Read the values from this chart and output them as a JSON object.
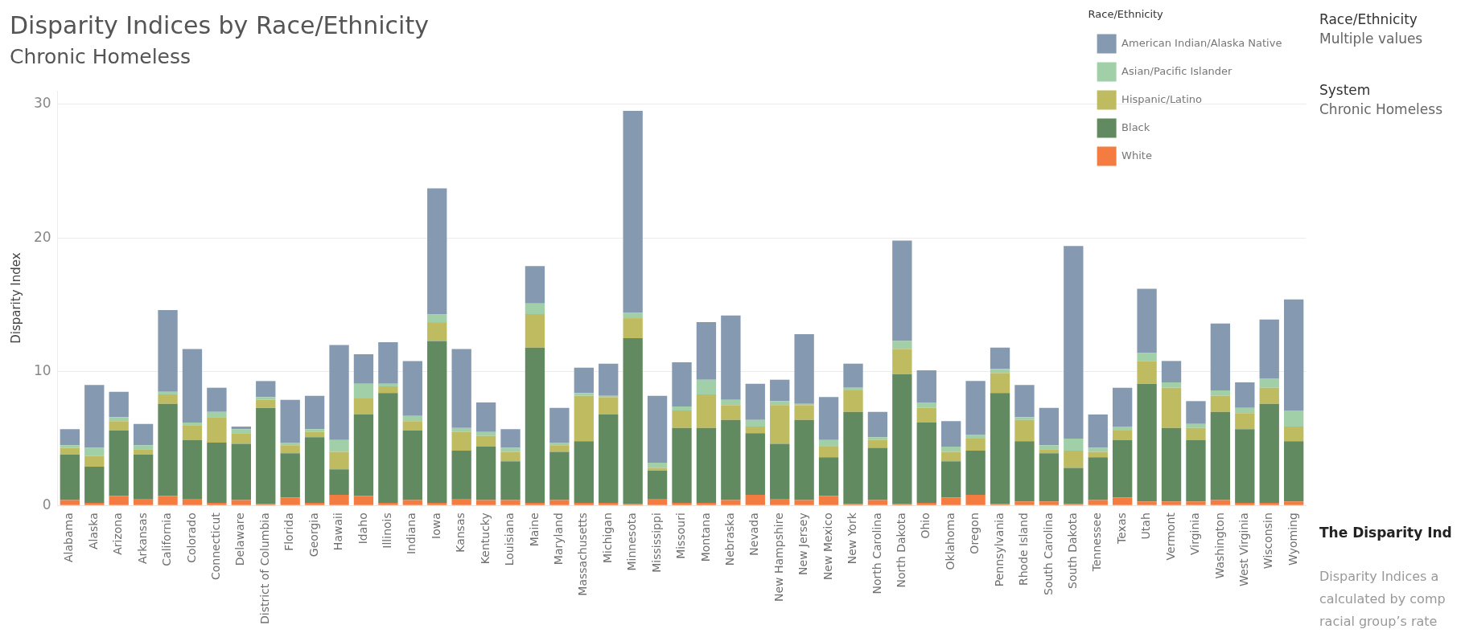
{
  "chart_data": {
    "type": "bar",
    "title": "Disparity Indices by Race/Ethnicity",
    "subtitle": "Chronic Homeless",
    "ylabel": "Disparity Index",
    "legend_title": "Race/Ethnicity",
    "categories": [
      "Alabama",
      "Alaska",
      "Arizona",
      "Arkansas",
      "California",
      "Colorado",
      "Connecticut",
      "Delaware",
      "District of Columbia",
      "Florida",
      "Georgia",
      "Hawaii",
      "Idaho",
      "Illinois",
      "Indiana",
      "Iowa",
      "Kansas",
      "Kentucky",
      "Louisiana",
      "Maine",
      "Maryland",
      "Massachusetts",
      "Michigan",
      "Minnesota",
      "Mississippi",
      "Missouri",
      "Montana",
      "Nebraska",
      "Nevada",
      "New Hampshire",
      "New Jersey",
      "New Mexico",
      "New York",
      "North Carolina",
      "North Dakota",
      "Ohio",
      "Oklahoma",
      "Oregon",
      "Pennsylvania",
      "Rhode Island",
      "South Carolina",
      "South Dakota",
      "Tennessee",
      "Texas",
      "Utah",
      "Vermont",
      "Virginia",
      "Washington",
      "West Virginia",
      "Wisconsin",
      "Wyoming"
    ],
    "stacked": true,
    "ylim": [
      0,
      31
    ],
    "yticks": [
      0,
      10,
      20,
      30
    ],
    "grid": "y",
    "legend": "top right",
    "series": [
      {
        "name": "White",
        "color": "#f47c41",
        "values": [
          0.4,
          0.2,
          0.7,
          0.5,
          0.7,
          0.5,
          0.2,
          0.4,
          0.1,
          0.6,
          0.2,
          0.8,
          0.7,
          0.2,
          0.4,
          0.2,
          0.5,
          0.4,
          0.4,
          0.2,
          0.4,
          0.2,
          0.2,
          0.1,
          0.5,
          0.2,
          0.2,
          0.4,
          0.8,
          0.5,
          0.4,
          0.7,
          0.1,
          0.4,
          0.1,
          0.2,
          0.6,
          0.8,
          0.1,
          0.3,
          0.3,
          0.1,
          0.4,
          0.6,
          0.3,
          0.3,
          0.3,
          0.4,
          0.2,
          0.2,
          0.3
        ]
      },
      {
        "name": "Black",
        "color": "#618a60",
        "values": [
          3.4,
          2.7,
          4.9,
          3.3,
          6.9,
          4.4,
          4.5,
          4.2,
          7.2,
          3.3,
          4.9,
          1.9,
          6.1,
          8.2,
          5.2,
          12.1,
          3.6,
          4.0,
          2.9,
          11.6,
          3.6,
          4.6,
          6.6,
          12.4,
          2.1,
          5.6,
          5.6,
          6.0,
          4.6,
          4.1,
          6.0,
          2.9,
          6.9,
          3.9,
          9.7,
          6.0,
          2.7,
          3.3,
          8.3,
          4.5,
          3.6,
          2.7,
          3.2,
          4.3,
          8.8,
          5.5,
          4.6,
          6.6,
          5.5,
          7.4,
          4.5
        ]
      },
      {
        "name": "Hispanic/Latino",
        "color": "#bfbb60",
        "values": [
          0.5,
          0.8,
          0.7,
          0.4,
          0.7,
          1.1,
          1.9,
          0.8,
          0.6,
          0.6,
          0.4,
          1.3,
          1.2,
          0.5,
          0.7,
          1.4,
          1.4,
          0.8,
          0.7,
          2.5,
          0.5,
          3.4,
          1.3,
          1.5,
          0.2,
          1.3,
          2.5,
          1.1,
          0.5,
          2.9,
          1.1,
          0.8,
          1.6,
          0.6,
          1.9,
          1.1,
          0.7,
          0.9,
          1.5,
          1.6,
          0.3,
          1.3,
          0.4,
          0.7,
          1.7,
          3.0,
          0.9,
          1.2,
          1.2,
          1.2,
          1.1
        ]
      },
      {
        "name": "Asian/Pacific Islander",
        "color": "#a0cfa8",
        "values": [
          0.2,
          0.6,
          0.3,
          0.3,
          0.2,
          0.2,
          0.4,
          0.3,
          0.2,
          0.2,
          0.2,
          0.9,
          1.1,
          0.2,
          0.4,
          0.6,
          0.3,
          0.3,
          0.3,
          0.8,
          0.2,
          0.2,
          0.1,
          0.4,
          0.4,
          0.3,
          1.1,
          0.4,
          0.5,
          0.3,
          0.1,
          0.5,
          0.2,
          0.2,
          0.6,
          0.4,
          0.4,
          0.3,
          0.3,
          0.2,
          0.3,
          0.9,
          0.3,
          0.3,
          0.6,
          0.4,
          0.3,
          0.4,
          0.4,
          0.7,
          1.2
        ]
      },
      {
        "name": "American Indian/Alaska Native",
        "color": "#8599b0",
        "values": [
          1.2,
          4.7,
          1.9,
          1.6,
          6.1,
          5.5,
          1.8,
          0.2,
          1.2,
          3.2,
          2.5,
          7.1,
          2.2,
          3.1,
          4.1,
          9.4,
          5.9,
          2.2,
          1.4,
          2.8,
          2.6,
          1.9,
          2.4,
          15.1,
          5.0,
          3.3,
          4.3,
          6.3,
          2.7,
          1.6,
          5.2,
          3.2,
          1.8,
          1.9,
          7.5,
          2.4,
          1.9,
          4.0,
          1.6,
          2.4,
          2.8,
          14.4,
          2.5,
          2.9,
          4.8,
          1.6,
          1.7,
          5.0,
          1.9,
          4.4,
          8.3
        ]
      }
    ],
    "annotations": [
      "Race/Ethnicity",
      "Multiple values",
      "System",
      "Chronic Homeless",
      "The Disparity Ind",
      "Disparity Indices a",
      "calculated by comp",
      "racial group’s rate"
    ]
  }
}
